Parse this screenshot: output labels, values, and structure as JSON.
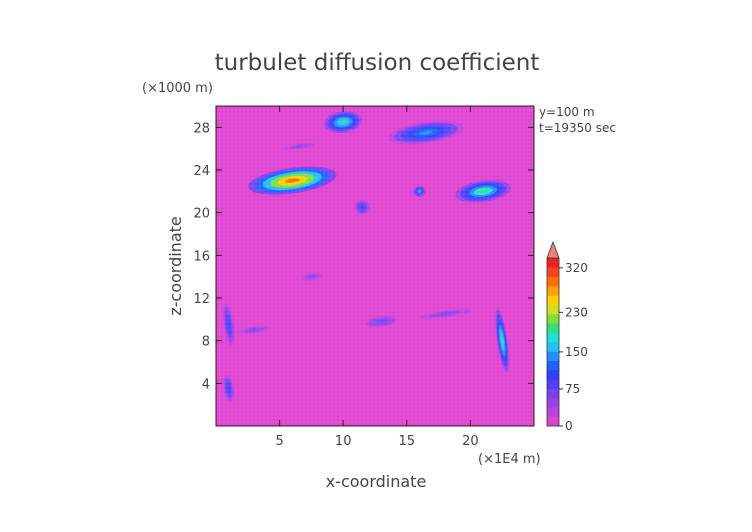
{
  "chart_data": {
    "type": "heatmap",
    "title": "turbulet diffusion coefficient",
    "xlabel": "x-coordinate",
    "ylabel": "z-coordinate",
    "x_unit": "(×1E4 m)",
    "y_unit": "(×1000 m)",
    "annotations": [
      "y=100 m",
      "t=19350 sec"
    ],
    "xlim": [
      0,
      25
    ],
    "ylim": [
      0,
      30
    ],
    "x_ticks": [
      5,
      10,
      15,
      20
    ],
    "y_ticks": [
      4,
      8,
      12,
      16,
      20,
      24,
      28
    ],
    "colorbar": {
      "min": 0,
      "max": 340,
      "tick_values": [
        0,
        75,
        150,
        230,
        320
      ],
      "tick_labels": [
        "0",
        "75",
        "150",
        "230",
        "320"
      ],
      "extend": "max",
      "colors": [
        "#e040d0",
        "#c040e0",
        "#9a40e8",
        "#7a40f0",
        "#5040f8",
        "#3040ff",
        "#2060ff",
        "#2090ff",
        "#20c0ff",
        "#20e0d0",
        "#30e080",
        "#80e030",
        "#d0e020",
        "#ffd000",
        "#ffa000",
        "#ff7000",
        "#ff4020",
        "#f02020"
      ],
      "background_color": "#e040d0"
    },
    "features": [
      {
        "x": 6.0,
        "z": 23.0,
        "rx": 3.5,
        "rz": 1.2,
        "level": 300
      },
      {
        "x": 10.0,
        "z": 28.5,
        "rx": 1.5,
        "rz": 1.0,
        "level": 190
      },
      {
        "x": 16.5,
        "z": 27.5,
        "rx": 3.0,
        "rz": 1.0,
        "level": 150
      },
      {
        "x": 21.0,
        "z": 22.0,
        "rx": 2.2,
        "rz": 1.0,
        "level": 200
      },
      {
        "x": 11.5,
        "z": 20.5,
        "rx": 0.6,
        "rz": 0.7,
        "level": 110
      },
      {
        "x": 16.0,
        "z": 22.0,
        "rx": 0.5,
        "rz": 0.5,
        "level": 160
      },
      {
        "x": 22.5,
        "z": 8.0,
        "rx": 0.4,
        "rz": 3.0,
        "level": 190
      },
      {
        "x": 1.0,
        "z": 9.5,
        "rx": 0.4,
        "rz": 2.0,
        "level": 110
      },
      {
        "x": 1.0,
        "z": 3.5,
        "rx": 0.4,
        "rz": 1.3,
        "level": 110
      },
      {
        "x": 13.0,
        "z": 9.8,
        "rx": 1.5,
        "rz": 0.6,
        "level": 75
      },
      {
        "x": 3.0,
        "z": 9.0,
        "rx": 1.5,
        "rz": 0.4,
        "level": 60
      },
      {
        "x": 18.0,
        "z": 10.5,
        "rx": 2.5,
        "rz": 0.4,
        "level": 60
      },
      {
        "x": 7.5,
        "z": 14.0,
        "rx": 1.0,
        "rz": 0.4,
        "level": 60
      },
      {
        "x": 6.5,
        "z": 26.2,
        "rx": 1.5,
        "rz": 0.3,
        "level": 60
      }
    ]
  }
}
